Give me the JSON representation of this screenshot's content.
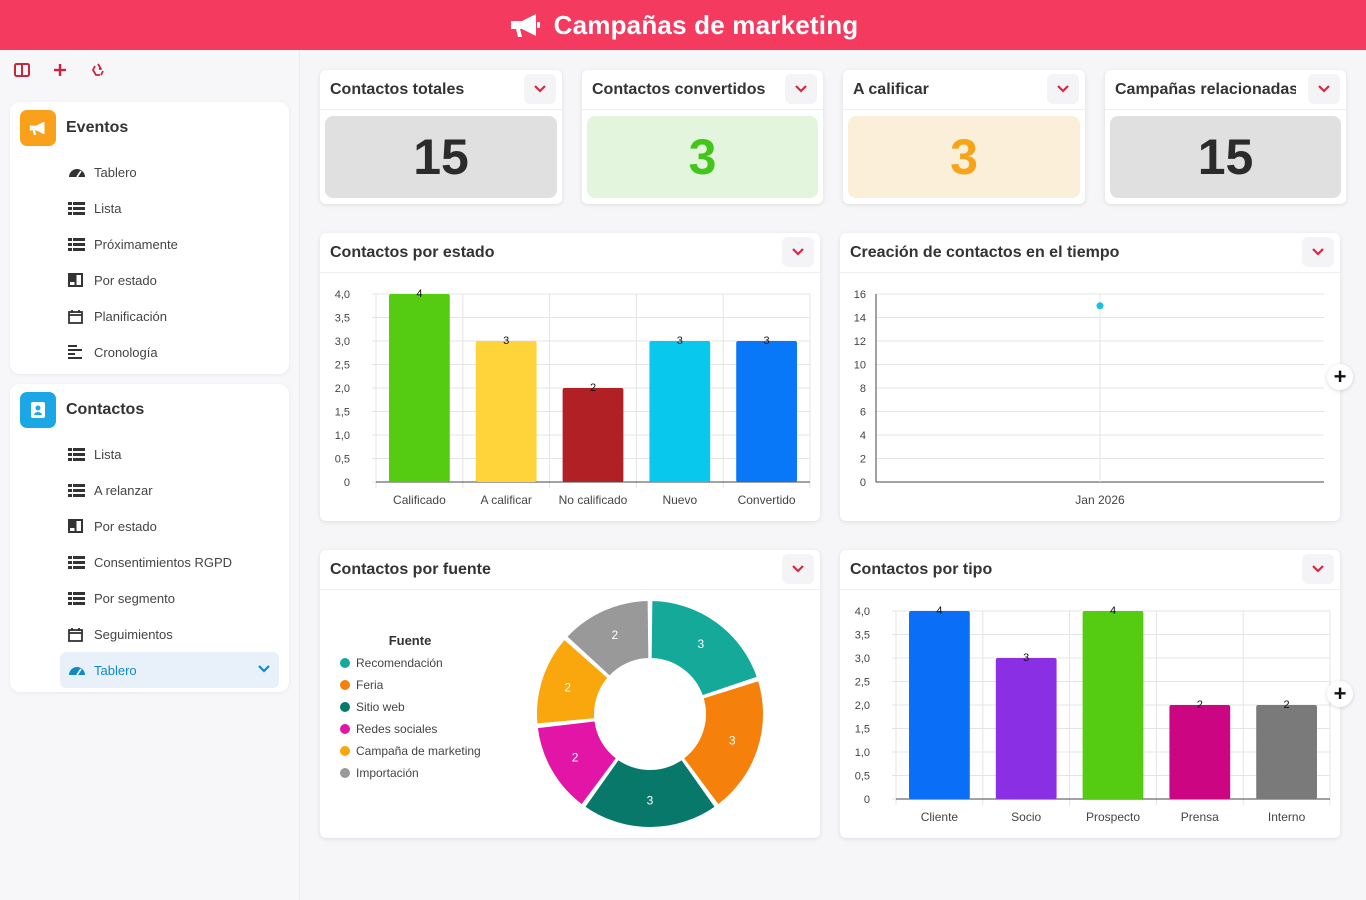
{
  "header": {
    "title": "Campañas de marketing",
    "icon": "megaphone-icon"
  },
  "toolbar": {
    "icons": [
      "layout-icon",
      "plus-icon",
      "recycle-icon"
    ]
  },
  "sidebar": {
    "groups": [
      {
        "label": "Eventos",
        "icon": "megaphone-icon",
        "color": "#f9a11b",
        "items": [
          {
            "label": "Tablero",
            "icon": "dashboard-icon"
          },
          {
            "label": "Lista",
            "icon": "list-icon"
          },
          {
            "label": "Próximamente",
            "icon": "list-icon"
          },
          {
            "label": "Por estado",
            "icon": "kanban-icon"
          },
          {
            "label": "Planificación",
            "icon": "calendar-icon"
          },
          {
            "label": "Cronología",
            "icon": "timeline-icon"
          }
        ]
      },
      {
        "label": "Contactos",
        "icon": "contact-book-icon",
        "color": "#1ba7e6",
        "items": [
          {
            "label": "Lista",
            "icon": "list-icon"
          },
          {
            "label": "A relanzar",
            "icon": "list-icon"
          },
          {
            "label": "Por estado",
            "icon": "kanban-icon"
          },
          {
            "label": "Consentimientos RGPD",
            "icon": "list-icon"
          },
          {
            "label": "Por segmento",
            "icon": "list-icon"
          },
          {
            "label": "Seguimientos",
            "icon": "calendar-icon"
          },
          {
            "label": "Tablero",
            "icon": "dashboard-icon",
            "active": true
          }
        ]
      }
    ]
  },
  "kpis": [
    {
      "title": "Contactos totales",
      "value": "15",
      "bg": "#e0e0e0",
      "color": "#2b2b2b"
    },
    {
      "title": "Contactos convertidos",
      "value": "3",
      "bg": "#e3f5dc",
      "color": "#44c51b"
    },
    {
      "title": "A calificar",
      "value": "3",
      "bg": "#fbefd9",
      "color": "#f7a41b"
    },
    {
      "title": "Campañas relacionadas t",
      "value": "15",
      "bg": "#e0e0e0",
      "color": "#2b2b2b"
    }
  ],
  "chart_data": [
    {
      "type": "bar",
      "title": "Contactos por estado",
      "categories": [
        "Calificado",
        "A calificar",
        "No calificado",
        "Nuevo",
        "Convertido"
      ],
      "values": [
        4,
        3,
        2,
        3,
        3
      ],
      "colors": [
        "#55cc11",
        "#ffd43b",
        "#b02025",
        "#08c8ee",
        "#0878f8"
      ],
      "ylim": [
        0,
        4
      ],
      "yticks": [
        "0",
        "0,5",
        "1,0",
        "1,5",
        "2,0",
        "2,5",
        "3,0",
        "3,5",
        "4,0"
      ],
      "grid": true
    },
    {
      "type": "scatter",
      "title": "Creación de contactos en el tiempo",
      "x": [
        "Jan 2026"
      ],
      "values": [
        15
      ],
      "color": "#17c0e6",
      "ylim": [
        0,
        16
      ],
      "yticks": [
        "0",
        "2",
        "4",
        "6",
        "8",
        "10",
        "12",
        "14",
        "16"
      ],
      "grid": true
    },
    {
      "type": "pie",
      "title": "Contactos por fuente",
      "legend_title": "Fuente",
      "legend_position": "left",
      "categories": [
        "Recomendación",
        "Feria",
        "Sitio web",
        "Redes sociales",
        "Campaña de marketing",
        "Importación"
      ],
      "values": [
        3,
        3,
        3,
        2,
        2,
        2
      ],
      "colors": [
        "#15a99a",
        "#f5800c",
        "#07786a",
        "#e215a7",
        "#f9a70c",
        "#999999"
      ]
    },
    {
      "type": "bar",
      "title": "Contactos por tipo",
      "categories": [
        "Cliente",
        "Socio",
        "Prospecto",
        "Prensa",
        "Interno"
      ],
      "values": [
        4,
        3,
        4,
        2,
        2
      ],
      "colors": [
        "#0a6ef7",
        "#8a2fe3",
        "#55cc11",
        "#cc0583",
        "#7a7a7a"
      ],
      "ylim": [
        0,
        4
      ],
      "yticks": [
        "0",
        "0,5",
        "1,0",
        "1,5",
        "2,0",
        "2,5",
        "3,0",
        "3,5",
        "4,0"
      ],
      "grid": true
    }
  ],
  "plus_label": "+"
}
